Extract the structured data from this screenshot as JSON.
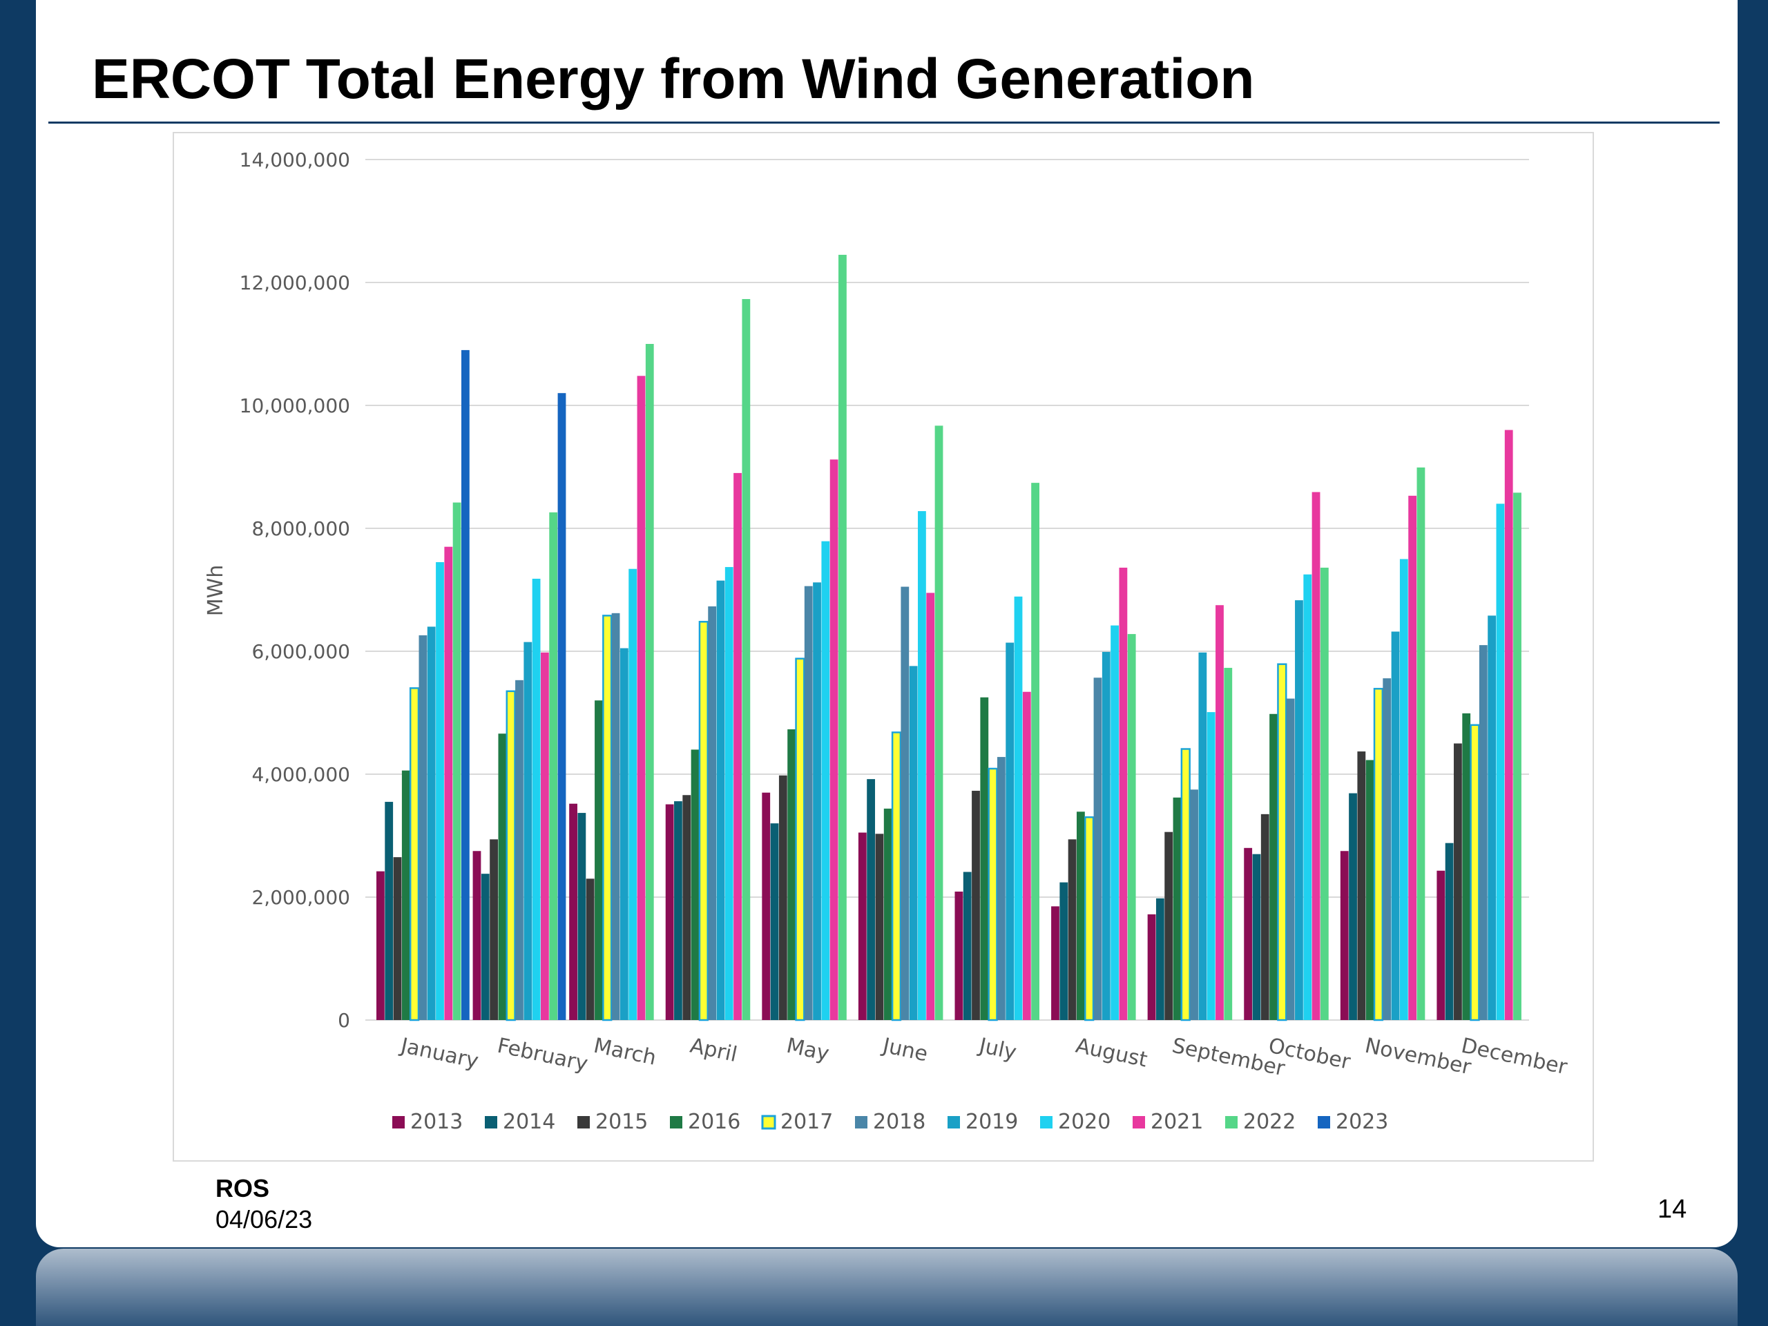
{
  "slide": {
    "title": "ERCOT Total Energy from Wind Generation",
    "footer_org": "ROS",
    "footer_date": "04/06/23",
    "page_number": "14"
  },
  "chart_data": {
    "type": "bar",
    "title": "",
    "xlabel": "",
    "ylabel": "MWh",
    "ylim": [
      0,
      14000000
    ],
    "yticks": [
      0,
      2000000,
      4000000,
      6000000,
      8000000,
      10000000,
      12000000,
      14000000
    ],
    "ytick_labels": [
      "0",
      "2,000,000",
      "4,000,000",
      "6,000,000",
      "8,000,000",
      "10,000,000",
      "12,000,000",
      "14,000,000"
    ],
    "grid": true,
    "legend_position": "bottom",
    "categories": [
      "January",
      "February",
      "March",
      "April",
      "May",
      "June",
      "July",
      "August",
      "September",
      "October",
      "November",
      "December"
    ],
    "series": [
      {
        "name": "2013",
        "color": "#8b0d55",
        "values": [
          2420000,
          2750000,
          3520000,
          3510000,
          3700000,
          3050000,
          2090000,
          1850000,
          1720000,
          2800000,
          2750000,
          2430000
        ]
      },
      {
        "name": "2014",
        "color": "#0a5f73",
        "values": [
          3550000,
          2380000,
          3370000,
          3560000,
          3200000,
          3920000,
          2410000,
          2240000,
          1980000,
          2700000,
          3690000,
          2880000
        ]
      },
      {
        "name": "2015",
        "color": "#3a3a3a",
        "values": [
          2650000,
          2940000,
          2300000,
          3660000,
          3980000,
          3030000,
          3730000,
          2940000,
          3060000,
          3350000,
          4370000,
          4500000
        ]
      },
      {
        "name": "2016",
        "color": "#1f7a45",
        "values": [
          4060000,
          4660000,
          5200000,
          4400000,
          4730000,
          3440000,
          5250000,
          3390000,
          3620000,
          4980000,
          4230000,
          4990000
        ]
      },
      {
        "name": "2017",
        "color": "#ffff33",
        "stroke": "#1aa3d9",
        "values": [
          5400000,
          5350000,
          6580000,
          6480000,
          5880000,
          4680000,
          4090000,
          3300000,
          4410000,
          5790000,
          5390000,
          4800000
        ]
      },
      {
        "name": "2018",
        "color": "#4a86a8",
        "values": [
          6260000,
          5530000,
          6620000,
          6730000,
          7060000,
          7050000,
          4280000,
          5570000,
          3750000,
          5230000,
          5560000,
          6100000
        ]
      },
      {
        "name": "2019",
        "color": "#1aa0c6",
        "values": [
          6400000,
          6150000,
          6050000,
          7150000,
          7120000,
          5760000,
          6140000,
          5990000,
          5980000,
          6830000,
          6320000,
          6580000
        ]
      },
      {
        "name": "2020",
        "color": "#1fd1f0",
        "values": [
          7450000,
          7180000,
          7340000,
          7370000,
          7790000,
          8280000,
          6890000,
          6420000,
          5010000,
          7250000,
          7500000,
          8400000
        ]
      },
      {
        "name": "2021",
        "color": "#e8389e",
        "values": [
          7700000,
          5980000,
          10480000,
          8900000,
          9120000,
          6950000,
          5340000,
          7360000,
          6750000,
          8590000,
          8530000,
          9600000
        ]
      },
      {
        "name": "2022",
        "color": "#55d688",
        "values": [
          8420000,
          8260000,
          11000000,
          11730000,
          12450000,
          9670000,
          8740000,
          6280000,
          5730000,
          7360000,
          8990000,
          8580000
        ]
      },
      {
        "name": "2023",
        "color": "#1565c0",
        "values": [
          10900000,
          10200000,
          null,
          null,
          null,
          null,
          null,
          null,
          null,
          null,
          null,
          null
        ]
      }
    ]
  }
}
